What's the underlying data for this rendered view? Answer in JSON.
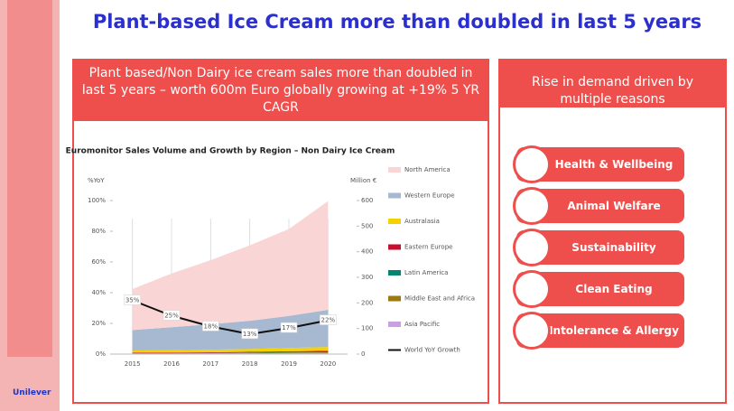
{
  "title": "Plant-based Ice Cream more than doubled in last 5 years",
  "left_panel": {
    "header": "Plant based/Non Dairy ice cream sales more than doubled in last 5 years – worth 600m Euro globally growing at +19% 5 YR CAGR"
  },
  "right_panel": {
    "header": "Rise in demand driven by multiple reasons",
    "reasons": [
      "Health & Wellbeing",
      "Animal Welfare",
      "Sustainability",
      "Clean Eating",
      "Intolerance & Allergy"
    ]
  },
  "brand": "Unilever",
  "chart_data": {
    "type": "area",
    "title": "Euromonitor Sales Volume and Growth by Region – Non Dairy Ice Cream",
    "y_label": "%YoY",
    "y2_label": "Million €",
    "categories": [
      "2015",
      "2016",
      "2017",
      "2018",
      "2019",
      "2020"
    ],
    "ylim": [
      0,
      100
    ],
    "yticks": [
      {
        "value": 0,
        "label": "0%"
      },
      {
        "value": 20,
        "label": "20%"
      },
      {
        "value": 40,
        "label": "40%"
      },
      {
        "value": 60,
        "label": "60%"
      },
      {
        "value": 80,
        "label": "80%"
      },
      {
        "value": 100,
        "label": "100%"
      }
    ],
    "y2lim": [
      0,
      600
    ],
    "y2ticks": [
      0,
      100,
      200,
      300,
      400,
      500,
      600
    ],
    "series": [
      {
        "name": "North America",
        "color": "#f9d6d5",
        "axis": "y2",
        "values": [
          160,
          210,
          250,
          295,
          340,
          425
        ]
      },
      {
        "name": "Western Europe",
        "color": "#a7b9d1",
        "axis": "y2",
        "values": [
          80,
          90,
          100,
          110,
          125,
          145
        ]
      },
      {
        "name": "Australasia",
        "color": "#f2d200",
        "axis": "y2",
        "values": [
          8,
          9,
          10,
          11,
          13,
          15
        ]
      },
      {
        "name": "Eastern Europe",
        "color": "#c8102e",
        "axis": "y2",
        "values": [
          2,
          2,
          2,
          3,
          3,
          4
        ]
      },
      {
        "name": "Latin America",
        "color": "#00856f",
        "axis": "y2",
        "values": [
          1,
          1,
          1,
          1,
          2,
          2
        ]
      },
      {
        "name": "Middle East and Africa",
        "color": "#9c7a10",
        "axis": "y2",
        "values": [
          1,
          1,
          1,
          2,
          2,
          2
        ]
      },
      {
        "name": "Asia Pacific",
        "color": "#c9a0e0",
        "axis": "y2",
        "values": [
          2,
          2,
          3,
          3,
          4,
          5
        ]
      },
      {
        "name": "World YoY Growth",
        "color": "#111111",
        "type": "line",
        "axis": "y",
        "values": [
          35,
          25,
          18,
          13,
          17,
          22
        ],
        "value_labels": [
          "35%",
          "25%",
          "18%",
          "13%",
          "17%",
          "22%"
        ]
      }
    ]
  }
}
